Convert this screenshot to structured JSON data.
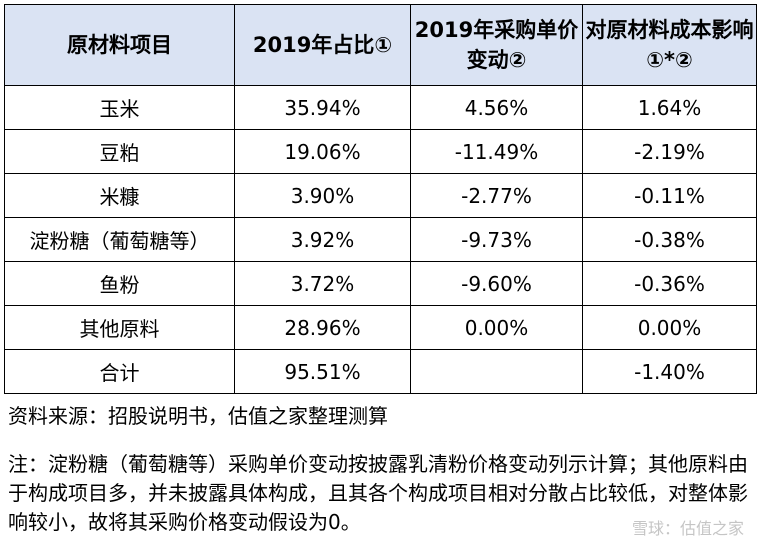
{
  "table": {
    "headers": [
      "原材料项目",
      "2019年占比①",
      "2019年采购单价变动②",
      "对原材料成本影响①*②"
    ],
    "rows": [
      [
        "玉米",
        "35.94%",
        "4.56%",
        "1.64%"
      ],
      [
        "豆粕",
        "19.06%",
        "-11.49%",
        "-2.19%"
      ],
      [
        "米糠",
        "3.90%",
        "-2.77%",
        "-0.11%"
      ],
      [
        "淀粉糖（葡萄糖等）",
        "3.92%",
        "-9.73%",
        "-0.38%"
      ],
      [
        "鱼粉",
        "3.72%",
        "-9.60%",
        "-0.36%"
      ],
      [
        "其他原料",
        "28.96%",
        "0.00%",
        "0.00%"
      ],
      [
        "合计",
        "95.51%",
        "",
        "-1.40%"
      ]
    ]
  },
  "source": "资料来源：招股说明书，估值之家整理测算",
  "note": "注：淀粉糖（葡萄糖等）采购单价变动按披露乳清粉价格变动列示计算；其他原料由于构成项目多，并未披露具体构成，且其各个构成项目相对分散占比较低，对整体影响较小，故将其采购价格变动假设为0。",
  "watermark": "雪球：估值之家"
}
